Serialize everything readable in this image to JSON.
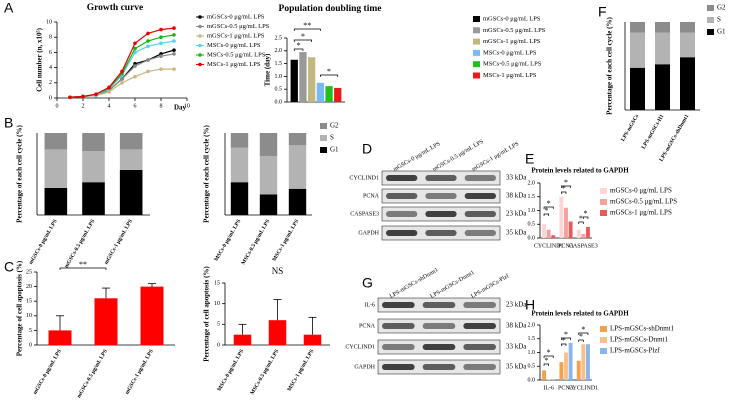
{
  "panels": [
    "A",
    "B",
    "C",
    "D",
    "E",
    "F",
    "G",
    "H"
  ],
  "chart_data": [
    {
      "type": "line",
      "title": "Growth curve",
      "x_label": "Day",
      "y_label": "Cell number (n, x10⁵)",
      "x": [
        1,
        2,
        3,
        4,
        5,
        6,
        7,
        8,
        9
      ],
      "xlim": [
        0,
        10
      ],
      "xticks": [
        0,
        2,
        4,
        6,
        8,
        10
      ],
      "ylim": [
        0,
        10
      ],
      "yticks": [
        0,
        2,
        4,
        6,
        8,
        10
      ],
      "series": [
        {
          "name": "mGSCs-0 μg/mL LPS",
          "color": "#000000",
          "values": [
            0.1,
            0.2,
            0.4,
            1,
            2.5,
            4.5,
            5,
            5.8,
            6.3
          ]
        },
        {
          "name": "mGSCs-0.5 μg/mL LPS",
          "color": "#8a8a8a",
          "values": [
            0.1,
            0.2,
            0.4,
            1,
            2.5,
            4.2,
            5,
            5.5,
            5.8
          ]
        },
        {
          "name": "mGSCs-1 μg/mL LPS",
          "color": "#c8b882",
          "values": [
            0.1,
            0.2,
            0.3,
            0.8,
            2,
            2.8,
            3.5,
            3.8,
            3.8
          ]
        },
        {
          "name": "MSCs-0 μg/mL LPS",
          "color": "#5fcdf0",
          "values": [
            0.1,
            0.2,
            0.4,
            1.2,
            3,
            6,
            6.8,
            7.2,
            7.5
          ]
        },
        {
          "name": "MSCs-0.5 μg/mL LPS",
          "color": "#12b812",
          "values": [
            0.1,
            0.2,
            0.5,
            1.3,
            3.2,
            6.5,
            7.5,
            8,
            8.3
          ]
        },
        {
          "name": "MSCs-1 μg/mL LPS",
          "color": "#e00000",
          "values": [
            0.1,
            0.2,
            0.5,
            1.4,
            3.5,
            7.2,
            8.5,
            9,
            9.2
          ]
        }
      ]
    },
    {
      "type": "bar",
      "title": "Population doubling time",
      "y_label": "Time (day)",
      "ylim": [
        0,
        2.5
      ],
      "yticks": [
        {
          "value": 0,
          "label": "0.0"
        },
        0.5,
        {
          "value": 1,
          "label": "1.0"
        },
        1.5,
        {
          "value": 2,
          "label": "2.0"
        },
        2.5
      ],
      "series": [
        {
          "name": "mGSCs-0 μg/mL LPS",
          "color": "#000000",
          "values": [
            1.65
          ]
        },
        {
          "name": "mGSCs-0.5 μg/mL LPS",
          "color": "#9a9a9a",
          "values": [
            1.95
          ]
        },
        {
          "name": "mGSCs-1 μg/mL LPS",
          "color": "#c2b77f",
          "values": [
            1.75
          ]
        },
        {
          "name": "MSCs-0 μg/mL LPS",
          "color": "#7ab8f0",
          "values": [
            0.75
          ]
        },
        {
          "name": "MSCs-0.5 μg/mL LPS",
          "color": "#1fc01f",
          "values": [
            0.62
          ]
        },
        {
          "name": "MSCs-1 μg/mL LPS",
          "color": "#e51c1c",
          "values": [
            0.55
          ]
        }
      ],
      "annotations": [
        "*",
        "*",
        "**",
        "*"
      ]
    },
    {
      "type": "stacked_bar",
      "y_label": "Percentage of each cell cycle (%)",
      "ylim": [
        0,
        100
      ],
      "categories": [
        "mGSCs-0 μg/mL LPS",
        "mGSCs-0.5 μg/mL LPS",
        "mGSCs-1 μg/mL LPS"
      ],
      "series": [
        {
          "name": "G1",
          "color": "#000000",
          "values": [
            33,
            40,
            55
          ]
        },
        {
          "name": "S",
          "color": "#b3b3b3",
          "values": [
            47,
            38,
            25
          ]
        },
        {
          "name": "G2",
          "color": "#8c8c8c",
          "values": [
            20,
            22,
            20
          ]
        }
      ]
    },
    {
      "type": "stacked_bar",
      "y_label": "Percentage of each cell cycle (%)",
      "ylim": [
        0,
        100
      ],
      "categories": [
        "MSCs-0 μg/mL LPS",
        "MSCs-0.5 μg/mL LPS",
        "MSCs-1 μg/mL LPS"
      ],
      "series": [
        {
          "name": "G1",
          "color": "#000000",
          "values": [
            40,
            25,
            32
          ]
        },
        {
          "name": "S",
          "color": "#b3b3b3",
          "values": [
            42,
            47,
            53
          ]
        },
        {
          "name": "G2",
          "color": "#8c8c8c",
          "values": [
            18,
            28,
            15
          ]
        }
      ]
    },
    {
      "type": "bar",
      "y_label": "Percentage of cell apoptosis (%)",
      "ylim": [
        0,
        25
      ],
      "yticks": [
        0,
        5,
        10,
        15,
        20,
        25
      ],
      "categories": [
        "mGSCs-0 μg/mL LPS",
        "mGSCs-0.5 μg/mL LPS",
        "mGSCs-1 μg/mL LPS"
      ],
      "values": [
        5,
        16,
        20
      ],
      "errors": [
        5,
        3.5,
        1
      ],
      "color": "#ff0000",
      "annotations": [
        "**"
      ]
    },
    {
      "type": "bar",
      "y_label": "Percentage of cell apoptosis (%)",
      "ylim": [
        0,
        15
      ],
      "yticks": [
        0,
        5,
        10,
        15
      ],
      "categories": [
        "MSCs-0 μg/mL LPS",
        "MSCs-0.5 μg/mL LPS",
        "MSCs-1 μg/mL LPS"
      ],
      "values": [
        2.5,
        6,
        2.5
      ],
      "errors": [
        2.5,
        5,
        4.2
      ],
      "color": "#ff0000",
      "annotations": [
        "NS"
      ]
    },
    {
      "type": "bar",
      "title": "Protein levels related to GAPDH",
      "ylim": [
        0,
        2
      ],
      "yticks": [
        {
          "value": 0,
          "label": "0.0"
        },
        0.5,
        {
          "value": 1,
          "label": "1.0"
        },
        1.5,
        {
          "value": 2,
          "label": "2.0"
        }
      ],
      "categories": [
        "CYCLIND1",
        "PCNA",
        "CASPASE3"
      ],
      "series": [
        {
          "name": "mGSCs-0 μg/mL LPS",
          "color": "#fcd5d5",
          "values": [
            0.5,
            1.5,
            0.3
          ]
        },
        {
          "name": "mGSCs-0.5 μg/mL LPS",
          "color": "#f4a0a0",
          "values": [
            0.3,
            1.1,
            0.15
          ]
        },
        {
          "name": "mGSCs-1 μg/mL LPS",
          "color": "#e85a5a",
          "values": [
            0.1,
            0.6,
            0.4
          ]
        }
      ],
      "annotations": [
        "*",
        "*",
        "*",
        "*",
        "*",
        "*"
      ]
    },
    {
      "type": "stacked_bar",
      "y_label": "Percentage of each cell cycle (%)",
      "ylim": [
        0,
        100
      ],
      "categories": [
        "LPS-mGSCs",
        "LPS-mGSCs-H1",
        "LPS-mGSCs-shDnmt1"
      ],
      "series": [
        {
          "name": "G1",
          "color": "#000000",
          "values": [
            48,
            52,
            60
          ]
        },
        {
          "name": "S",
          "color": "#b3b3b3",
          "values": [
            40,
            36,
            28
          ]
        },
        {
          "name": "G2",
          "color": "#8c8c8c",
          "values": [
            12,
            12,
            12
          ]
        }
      ]
    },
    {
      "type": "bar",
      "title": "Protein levels related to GAPDH",
      "ylim": [
        0,
        2
      ],
      "yticks": [
        {
          "value": 0,
          "label": "0.0"
        },
        0.5,
        {
          "value": 1,
          "label": "1.0"
        },
        1.5,
        {
          "value": 2,
          "label": "2.0"
        }
      ],
      "categories": [
        "IL-6",
        "PCNA",
        "CYCLIND1"
      ],
      "series": [
        {
          "name": "LPS-mGSCs-shDnmt1",
          "color": "#f5a04a",
          "values": [
            0.35,
            0.65,
            0.7
          ]
        },
        {
          "name": "LPS-mGSCs-Dnmt1",
          "color": "#f7c08a",
          "values": [
            0.02,
            1.0,
            1.3
          ]
        },
        {
          "name": "LPS-mGSCs-Plzf",
          "color": "#8ab4ea",
          "values": [
            0.02,
            1.35,
            1.3
          ]
        }
      ],
      "annotations": [
        "*",
        "*",
        "*",
        "*",
        "*",
        "*"
      ]
    }
  ],
  "blots": [
    {
      "columns": [
        "mGSCs-0 μg/mL LPS",
        "mGSCs-0.5 μg/mL LPS",
        "mGSCs-1 μg/mL LPS"
      ],
      "rows": [
        {
          "label": "CYCLIND1",
          "size": "33 kDa"
        },
        {
          "label": "PCNA",
          "size": "38 kDa"
        },
        {
          "label": "CASPASE3",
          "size": "23 kDa"
        },
        {
          "label": "GAPDH",
          "size": "35 kDa"
        }
      ]
    },
    {
      "columns": [
        "LPS-mGSCs-shDnmt1",
        "LPS-mGSCs-Dnmt1",
        "LPS-mGSCs-Plzf"
      ],
      "rows": [
        {
          "label": "IL-6",
          "size": "23 kDa"
        },
        {
          "label": "PCNA",
          "size": "38 kDa"
        },
        {
          "label": "CYCLIND1",
          "size": "33 kDa"
        },
        {
          "label": "GAPDH",
          "size": "35 kDa"
        }
      ]
    }
  ]
}
